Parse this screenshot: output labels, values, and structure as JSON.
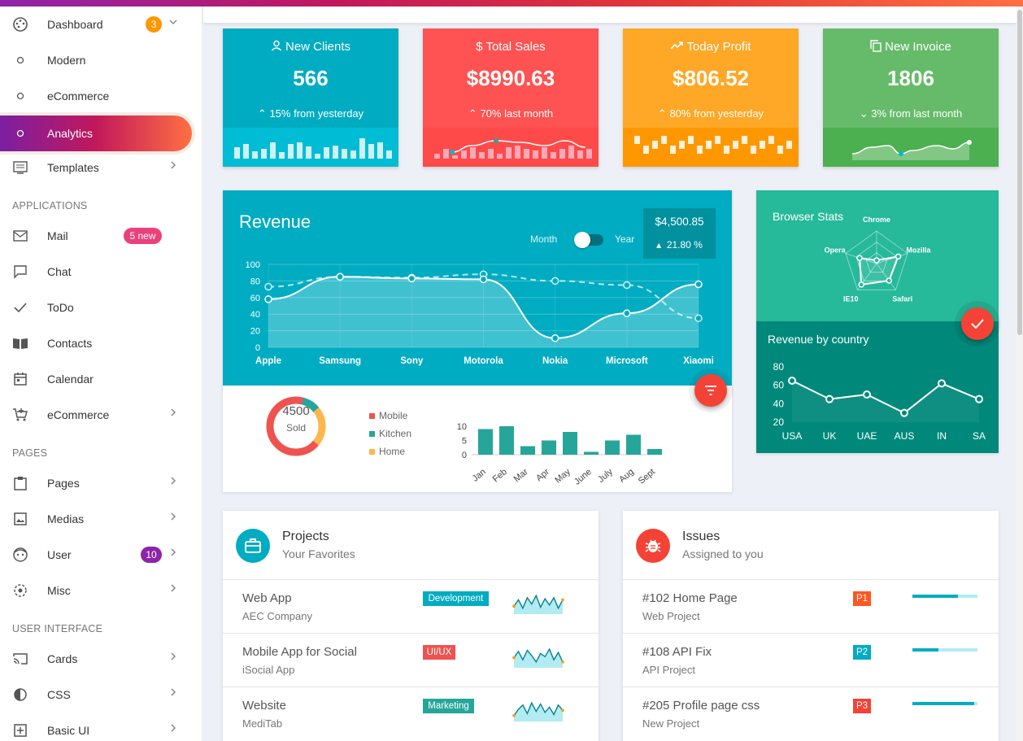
{
  "sidebar": {
    "items": [
      {
        "id": "dashboard",
        "label": "Dashboard",
        "icon": "dashboard-icon",
        "badge": "3",
        "chevron": "down"
      },
      {
        "id": "modern",
        "label": "Modern",
        "icon": "circle-outline-icon"
      },
      {
        "id": "ecommerce-sub",
        "label": "eCommerce",
        "icon": "circle-outline-icon"
      },
      {
        "id": "analytics",
        "label": "Analytics",
        "icon": "circle-outline-icon",
        "active": true
      },
      {
        "id": "templates",
        "label": "Templates",
        "icon": "templates-icon",
        "chevron": "right"
      }
    ],
    "sections": [
      {
        "title": "APPLICATIONS",
        "items": [
          {
            "id": "mail",
            "label": "Mail",
            "icon": "mail-icon",
            "badge": "5 new"
          },
          {
            "id": "chat",
            "label": "Chat",
            "icon": "chat-icon"
          },
          {
            "id": "todo",
            "label": "ToDo",
            "icon": "check-icon"
          },
          {
            "id": "contacts",
            "label": "Contacts",
            "icon": "contacts-book-icon"
          },
          {
            "id": "calendar",
            "label": "Calendar",
            "icon": "calendar-icon"
          },
          {
            "id": "ecommerce",
            "label": "eCommerce",
            "icon": "cart-icon",
            "chevron": "right"
          }
        ]
      },
      {
        "title": "PAGES",
        "items": [
          {
            "id": "pages",
            "label": "Pages",
            "icon": "clipboard-icon",
            "chevron": "right"
          },
          {
            "id": "medias",
            "label": "Medias",
            "icon": "image-icon",
            "chevron": "right"
          },
          {
            "id": "user",
            "label": "User",
            "icon": "face-icon",
            "badge": "10",
            "chevron": "right"
          },
          {
            "id": "misc",
            "label": "Misc",
            "icon": "target-icon",
            "chevron": "right"
          }
        ]
      },
      {
        "title": "USER INTERFACE",
        "items": [
          {
            "id": "cards",
            "label": "Cards",
            "icon": "cast-icon",
            "chevron": "right"
          },
          {
            "id": "css",
            "label": "CSS",
            "icon": "contrast-icon",
            "chevron": "right"
          },
          {
            "id": "basic-ui",
            "label": "Basic UI",
            "icon": "add-box-icon",
            "chevron": "right"
          }
        ]
      }
    ]
  },
  "stats": [
    {
      "title": "New Clients",
      "icon": "person-icon",
      "value": "566",
      "delta": "15% from yesterday",
      "direction": "up",
      "color": "#00acc1",
      "foot_color": "#00bcd4"
    },
    {
      "title": "Total Sales",
      "icon": "dollar-icon",
      "value": "$8990.63",
      "delta": "70% last month",
      "direction": "up",
      "color": "#ff5252",
      "foot_color": "#ff4a4a"
    },
    {
      "title": "Today Profit",
      "icon": "trending-up-icon",
      "value": "$806.52",
      "delta": "80% from yesterday",
      "direction": "up",
      "color": "#ffa726",
      "foot_color": "#ff9800"
    },
    {
      "title": "New Invoice",
      "icon": "copy-icon",
      "value": "1806",
      "delta": "3% from last month",
      "direction": "down",
      "color": "#66bb6a",
      "foot_color": "#4caf50"
    }
  ],
  "revenue": {
    "title": "Revenue",
    "toggle_left": "Month",
    "toggle_right": "Year",
    "amount": "$4,500.85",
    "change": "21.80 %",
    "colors": {
      "header": "#00acc1",
      "line": "#ffffff",
      "fab": "#f44336"
    }
  },
  "chart_data": [
    {
      "type": "line",
      "id": "revenue-chart",
      "categories": [
        "Apple",
        "Samsung",
        "Sony",
        "Motorola",
        "Nokia",
        "Microsoft",
        "Xiaomi"
      ],
      "series": [
        {
          "values": [
            58,
            85,
            83,
            82,
            11,
            41,
            76
          ]
        },
        {
          "values": [
            73,
            85,
            84,
            88,
            80,
            75,
            35
          ]
        }
      ],
      "ylim": [
        0,
        100
      ],
      "yticks": [
        0,
        20,
        40,
        60,
        80,
        100
      ],
      "grid": true
    },
    {
      "type": "pie",
      "id": "sold-donut",
      "center_value": "4500",
      "center_label": "Sold",
      "labels": [
        "Mobile",
        "Kitchen",
        "Home"
      ],
      "values": [
        68,
        10,
        22
      ],
      "colors": [
        "#ef5350",
        "#26a69a",
        "#ffb74d"
      ],
      "legend_position": "right"
    },
    {
      "type": "bar",
      "id": "monthly-bars",
      "categories": [
        "Jan",
        "Feb",
        "Mar",
        "Apr",
        "May",
        "June",
        "July",
        "Aug",
        "Sept"
      ],
      "values": [
        9,
        10,
        3,
        5,
        8,
        1,
        5,
        7,
        2
      ],
      "ylim": [
        0,
        10
      ],
      "yticks": [
        0,
        5,
        10
      ],
      "color": "#26a69a"
    },
    {
      "type": "line",
      "id": "browser-radar",
      "labels": [
        "Chrome",
        "Mozilla",
        "Safari",
        "IE10",
        "Opera"
      ],
      "values": [
        10,
        70,
        65,
        80,
        55
      ],
      "max": 100
    },
    {
      "type": "line",
      "id": "revenue-by-country",
      "categories": [
        "USA",
        "UK",
        "UAE",
        "AUS",
        "IN",
        "SA"
      ],
      "values": [
        65,
        45,
        50,
        30,
        62,
        45
      ],
      "ylim": [
        20,
        80
      ],
      "yticks": [
        20,
        40,
        60,
        80
      ]
    }
  ],
  "browser_stats": {
    "title": "Browser Stats",
    "color": "#26b99a"
  },
  "country": {
    "title": "Revenue by country",
    "color": "#00897b"
  },
  "projects": {
    "title": "Projects",
    "subtitle": "Your Favorites",
    "rows": [
      {
        "title": "Web App",
        "company": "AEC Company",
        "tag": "Development",
        "tag_color": "#00acc1",
        "spark": [
          30,
          60,
          20,
          70,
          40,
          80,
          25,
          65,
          35,
          70,
          20,
          60
        ]
      },
      {
        "title": "Mobile App for Social",
        "company": "iSocial App",
        "tag": "UI/UX",
        "tag_color": "#ef5350",
        "spark": [
          40,
          70,
          30,
          75,
          50,
          20,
          60,
          45,
          80,
          30,
          65,
          20
        ]
      },
      {
        "title": "Website",
        "company": "MediTab",
        "tag": "Marketing",
        "tag_color": "#26a69a",
        "spark": [
          20,
          50,
          70,
          30,
          80,
          40,
          75,
          35,
          60,
          25,
          70,
          45
        ]
      }
    ]
  },
  "issues": {
    "title": "Issues",
    "subtitle": "Assigned to you",
    "rows": [
      {
        "title": "#102 Home Page",
        "project": "Web Project",
        "priority": "P1",
        "color": "#ff5722",
        "progress": 70
      },
      {
        "title": "#108 API Fix",
        "project": "API Project",
        "priority": "P2",
        "color": "#00acc1",
        "progress": 40
      },
      {
        "title": "#205 Profile page css",
        "project": "New Project",
        "priority": "P3",
        "color": "#f44336",
        "progress": 95
      }
    ]
  }
}
